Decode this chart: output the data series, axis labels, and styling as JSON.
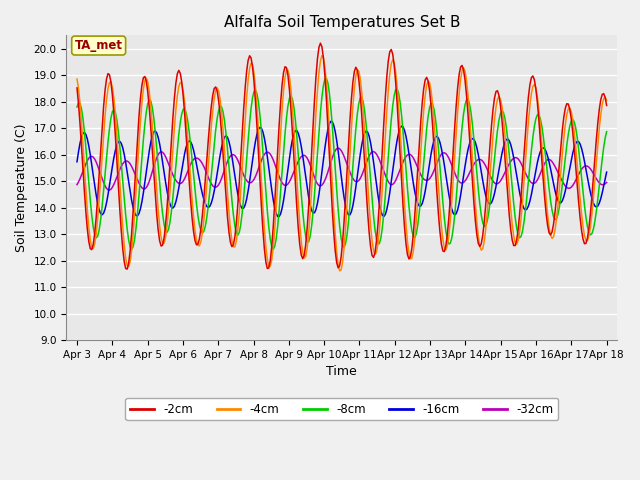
{
  "title": "Alfalfa Soil Temperatures Set B",
  "xlabel": "Time",
  "ylabel": "Soil Temperature (C)",
  "ylim": [
    9.0,
    20.5
  ],
  "yticks": [
    9.0,
    10.0,
    11.0,
    12.0,
    13.0,
    14.0,
    15.0,
    16.0,
    17.0,
    18.0,
    19.0,
    20.0
  ],
  "xtick_labels": [
    "Apr 3",
    "Apr 4",
    "Apr 5",
    "Apr 6",
    "Apr 7",
    "Apr 8",
    "Apr 9",
    "Apr 10",
    "Apr 11",
    "Apr 12",
    "Apr 13",
    "Apr 14",
    "Apr 15",
    "Apr 16",
    "Apr 17",
    "Apr 18"
  ],
  "colors": {
    "-2cm": "#dd0000",
    "-4cm": "#ff8800",
    "-8cm": "#00cc00",
    "-16cm": "#0000dd",
    "-32cm": "#bb00bb"
  },
  "annotation_text": "TA_met",
  "annotation_color": "#990000",
  "annotation_bg": "#ffffcc",
  "plot_bg": "#e8e8e8",
  "fig_bg": "#f0f0f0",
  "title_fontsize": 11,
  "tick_fontsize": 7.5,
  "label_fontsize": 9
}
